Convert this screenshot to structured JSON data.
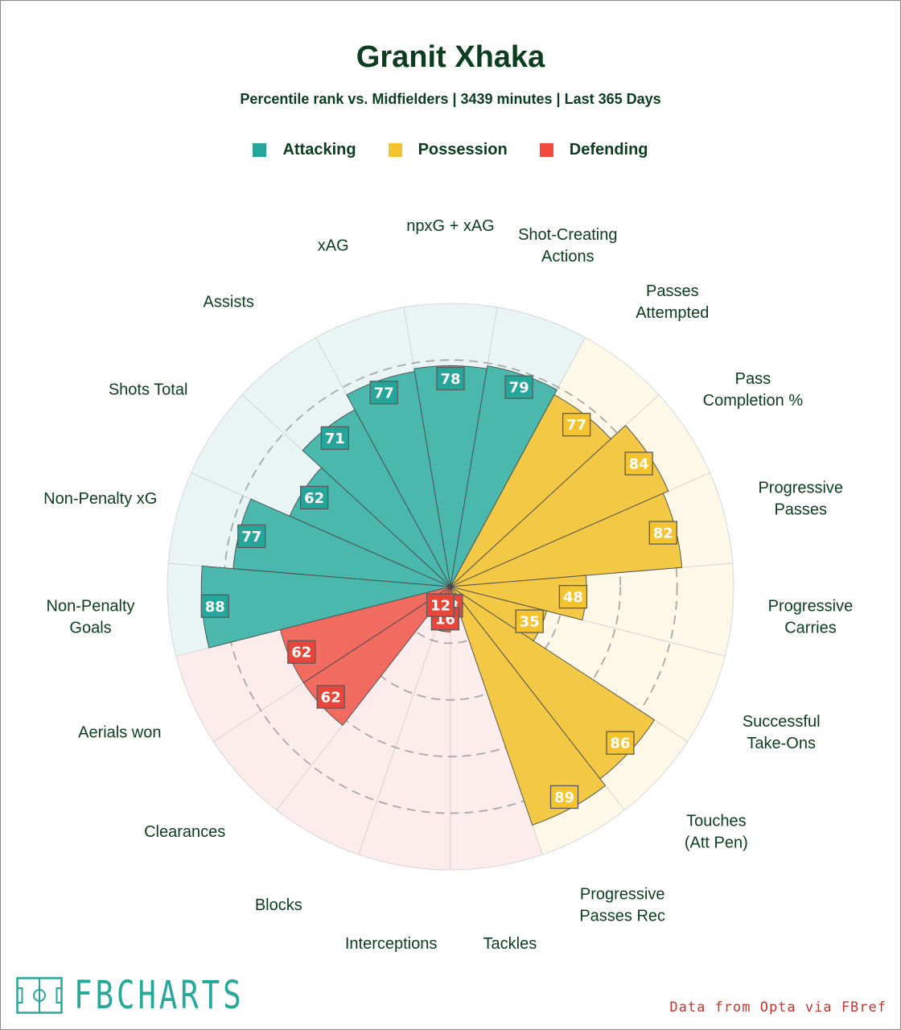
{
  "title": "Granit Xhaka",
  "subtitle": "Percentile rank vs. Midfielders | 3439 minutes | Last 365 Days",
  "legend": [
    {
      "label": "Attacking",
      "color": "#26a69a"
    },
    {
      "label": "Possession",
      "color": "#f4c430"
    },
    {
      "label": "Defending",
      "color": "#ef4a3c"
    }
  ],
  "footer": {
    "logo_text": "FBCHARTS",
    "source": "Data from Opta via FBref"
  },
  "chart_data": {
    "type": "polar-bar",
    "title": "Granit Xhaka",
    "range": [
      0,
      100
    ],
    "gridlines": [
      20,
      40,
      60,
      80
    ],
    "categories": [
      {
        "label": "npxG + xAG",
        "value": 78,
        "group": "Attacking"
      },
      {
        "label": "Shot-Creating Actions",
        "value": 79,
        "group": "Attacking"
      },
      {
        "label": "Passes Attempted",
        "value": 77,
        "group": "Possession"
      },
      {
        "label": "Pass Completion %",
        "value": 84,
        "group": "Possession"
      },
      {
        "label": "Progressive Passes",
        "value": 82,
        "group": "Possession"
      },
      {
        "label": "Progressive Carries",
        "value": 48,
        "group": "Possession"
      },
      {
        "label": "Successful Take-Ons",
        "value": 35,
        "group": "Possession"
      },
      {
        "label": "Touches (Att Pen)",
        "value": 86,
        "group": "Possession"
      },
      {
        "label": "Progressive Passes Rec",
        "value": 89,
        "group": "Possession"
      },
      {
        "label": "Tackles",
        "value": 8,
        "group": "Defending"
      },
      {
        "label": "Interceptions",
        "value": 16,
        "group": "Defending"
      },
      {
        "label": "Blocks",
        "value": 12,
        "group": "Defending"
      },
      {
        "label": "Clearances",
        "value": 62,
        "group": "Defending"
      },
      {
        "label": "Aerials won",
        "value": 62,
        "group": "Defending"
      },
      {
        "label": "Non-Penalty Goals",
        "value": 88,
        "group": "Attacking"
      },
      {
        "label": "Non-Penalty xG",
        "value": 77,
        "group": "Attacking"
      },
      {
        "label": "Shots Total",
        "value": 62,
        "group": "Attacking"
      },
      {
        "label": "Assists",
        "value": 71,
        "group": "Attacking"
      },
      {
        "label": "xAG",
        "value": 77,
        "group": "Attacking"
      }
    ],
    "colors": {
      "Attacking": {
        "bar": "#4bb8ad",
        "bg": "#e8f5f4",
        "box": "#26a69a"
      },
      "Possession": {
        "bar": "#f3c844",
        "bg": "#fdf8e8",
        "box": "#f4c430"
      },
      "Defending": {
        "bar": "#f26b60",
        "bg": "#fdecec",
        "box": "#e8463a"
      }
    }
  }
}
